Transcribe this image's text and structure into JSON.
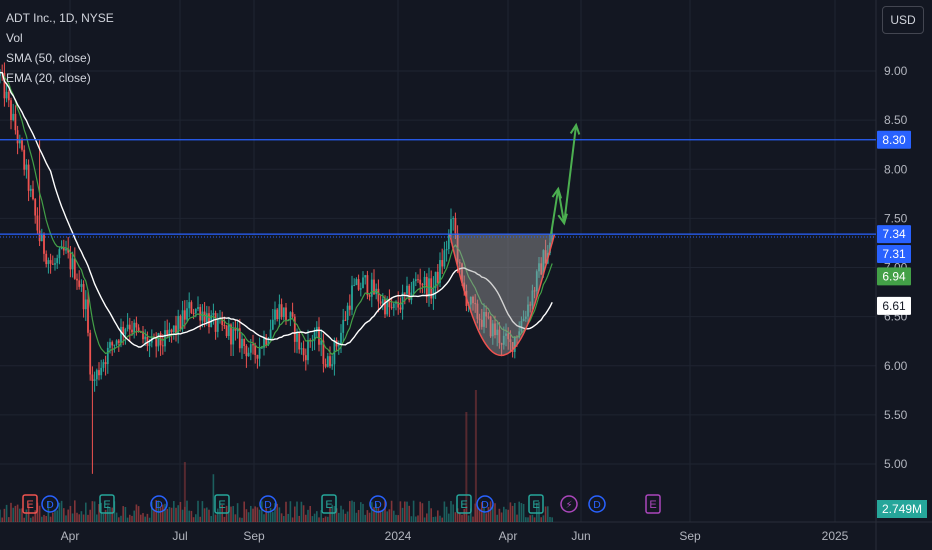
{
  "legend": {
    "symbol": "ADT Inc., 1D, NYSE",
    "vol": "Vol",
    "sma": "SMA (50, close)",
    "ema": "EMA (20, close)"
  },
  "currency": "USD",
  "colors": {
    "background": "#131722",
    "grid": "#1f2431",
    "up": "#26a69a",
    "down": "#ef5350",
    "sma": "#ffffff",
    "ema": "#43a047",
    "resistance": "#2962ff",
    "arrow": "#4caf50",
    "cup_curve": "#ef5350"
  },
  "chart_data": {
    "type": "candlestick",
    "title": "ADT Inc., 1D, NYSE",
    "x_ticks": [
      "Apr",
      "Jul",
      "Sep",
      "2024",
      "Apr",
      "Jun",
      "Sep",
      "2025"
    ],
    "y_ticks": [
      5.0,
      5.5,
      6.0,
      6.5,
      7.0,
      7.5,
      8.0,
      8.5,
      9.0
    ],
    "ylim": [
      4.7,
      9.6
    ],
    "grid": true,
    "price_labels": [
      {
        "value": 8.3,
        "text": "8.30",
        "kind": "resistance"
      },
      {
        "value": 7.34,
        "text": "7.34",
        "kind": "resistance"
      },
      {
        "value": 7.31,
        "text": "7.31",
        "kind": "last"
      },
      {
        "value": 6.94,
        "text": "6.94",
        "kind": "ema"
      },
      {
        "value": 6.61,
        "text": "6.61",
        "kind": "sma"
      }
    ],
    "horizontal_lines": [
      8.3,
      7.34
    ],
    "volume_label": "2.749M",
    "event_markers": [
      "E",
      "D",
      "E",
      "D",
      "E",
      "D",
      "E",
      "D",
      "E",
      "D",
      "E",
      "⚡",
      "D",
      "E"
    ],
    "price_path": [
      [
        "2023-02-15",
        8.95
      ],
      [
        "2023-02-28",
        8.4
      ],
      [
        "2023-03-10",
        7.9
      ],
      [
        "2023-03-20",
        7.3
      ],
      [
        "2023-03-31",
        7.0
      ],
      [
        "2023-04-10",
        7.15
      ],
      [
        "2023-04-20",
        6.95
      ],
      [
        "2023-04-28",
        6.6
      ],
      [
        "2023-05-03",
        5.8
      ],
      [
        "2023-05-12",
        6.05
      ],
      [
        "2023-05-22",
        6.25
      ],
      [
        "2023-06-02",
        6.45
      ],
      [
        "2023-06-12",
        6.3
      ],
      [
        "2023-06-22",
        6.2
      ],
      [
        "2023-07-03",
        6.25
      ],
      [
        "2023-07-14",
        6.4
      ],
      [
        "2023-07-25",
        6.6
      ],
      [
        "2023-08-04",
        6.55
      ],
      [
        "2023-08-15",
        6.4
      ],
      [
        "2023-08-25",
        6.35
      ],
      [
        "2023-09-05",
        6.25
      ],
      [
        "2023-09-15",
        6.1
      ],
      [
        "2023-09-26",
        6.3
      ],
      [
        "2023-10-06",
        6.6
      ],
      [
        "2023-10-17",
        6.45
      ],
      [
        "2023-10-27",
        6.1
      ],
      [
        "2023-11-06",
        6.35
      ],
      [
        "2023-11-16",
        6.0
      ],
      [
        "2023-11-27",
        6.3
      ],
      [
        "2023-12-07",
        6.75
      ],
      [
        "2023-12-18",
        6.85
      ],
      [
        "2023-12-29",
        6.7
      ],
      [
        "2024-01-10",
        6.55
      ],
      [
        "2024-01-22",
        6.7
      ],
      [
        "2024-02-01",
        6.9
      ],
      [
        "2024-02-12",
        6.75
      ],
      [
        "2024-02-22",
        7.1
      ],
      [
        "2024-03-01",
        7.5
      ],
      [
        "2024-03-08",
        6.8
      ],
      [
        "2024-03-18",
        6.55
      ],
      [
        "2024-03-28",
        6.45
      ],
      [
        "2024-04-08",
        6.3
      ],
      [
        "2024-04-18",
        6.2
      ],
      [
        "2024-04-29",
        6.5
      ],
      [
        "2024-05-08",
        6.8
      ],
      [
        "2024-05-16",
        7.1
      ],
      [
        "2024-05-24",
        7.31
      ]
    ],
    "annotations": {
      "cup_curve": [
        [
          "2024-02-27",
          7.34
        ],
        [
          "2024-03-15",
          6.65
        ],
        [
          "2024-04-15",
          6.12
        ],
        [
          "2024-05-10",
          6.7
        ],
        [
          "2024-05-25",
          7.34
        ]
      ],
      "arrow_zigzag": [
        [
          "2024-05-22",
          7.34
        ],
        [
          "2024-05-28",
          7.8
        ],
        [
          "2024-06-02",
          7.45
        ],
        [
          "2024-06-12",
          8.45
        ]
      ]
    }
  }
}
